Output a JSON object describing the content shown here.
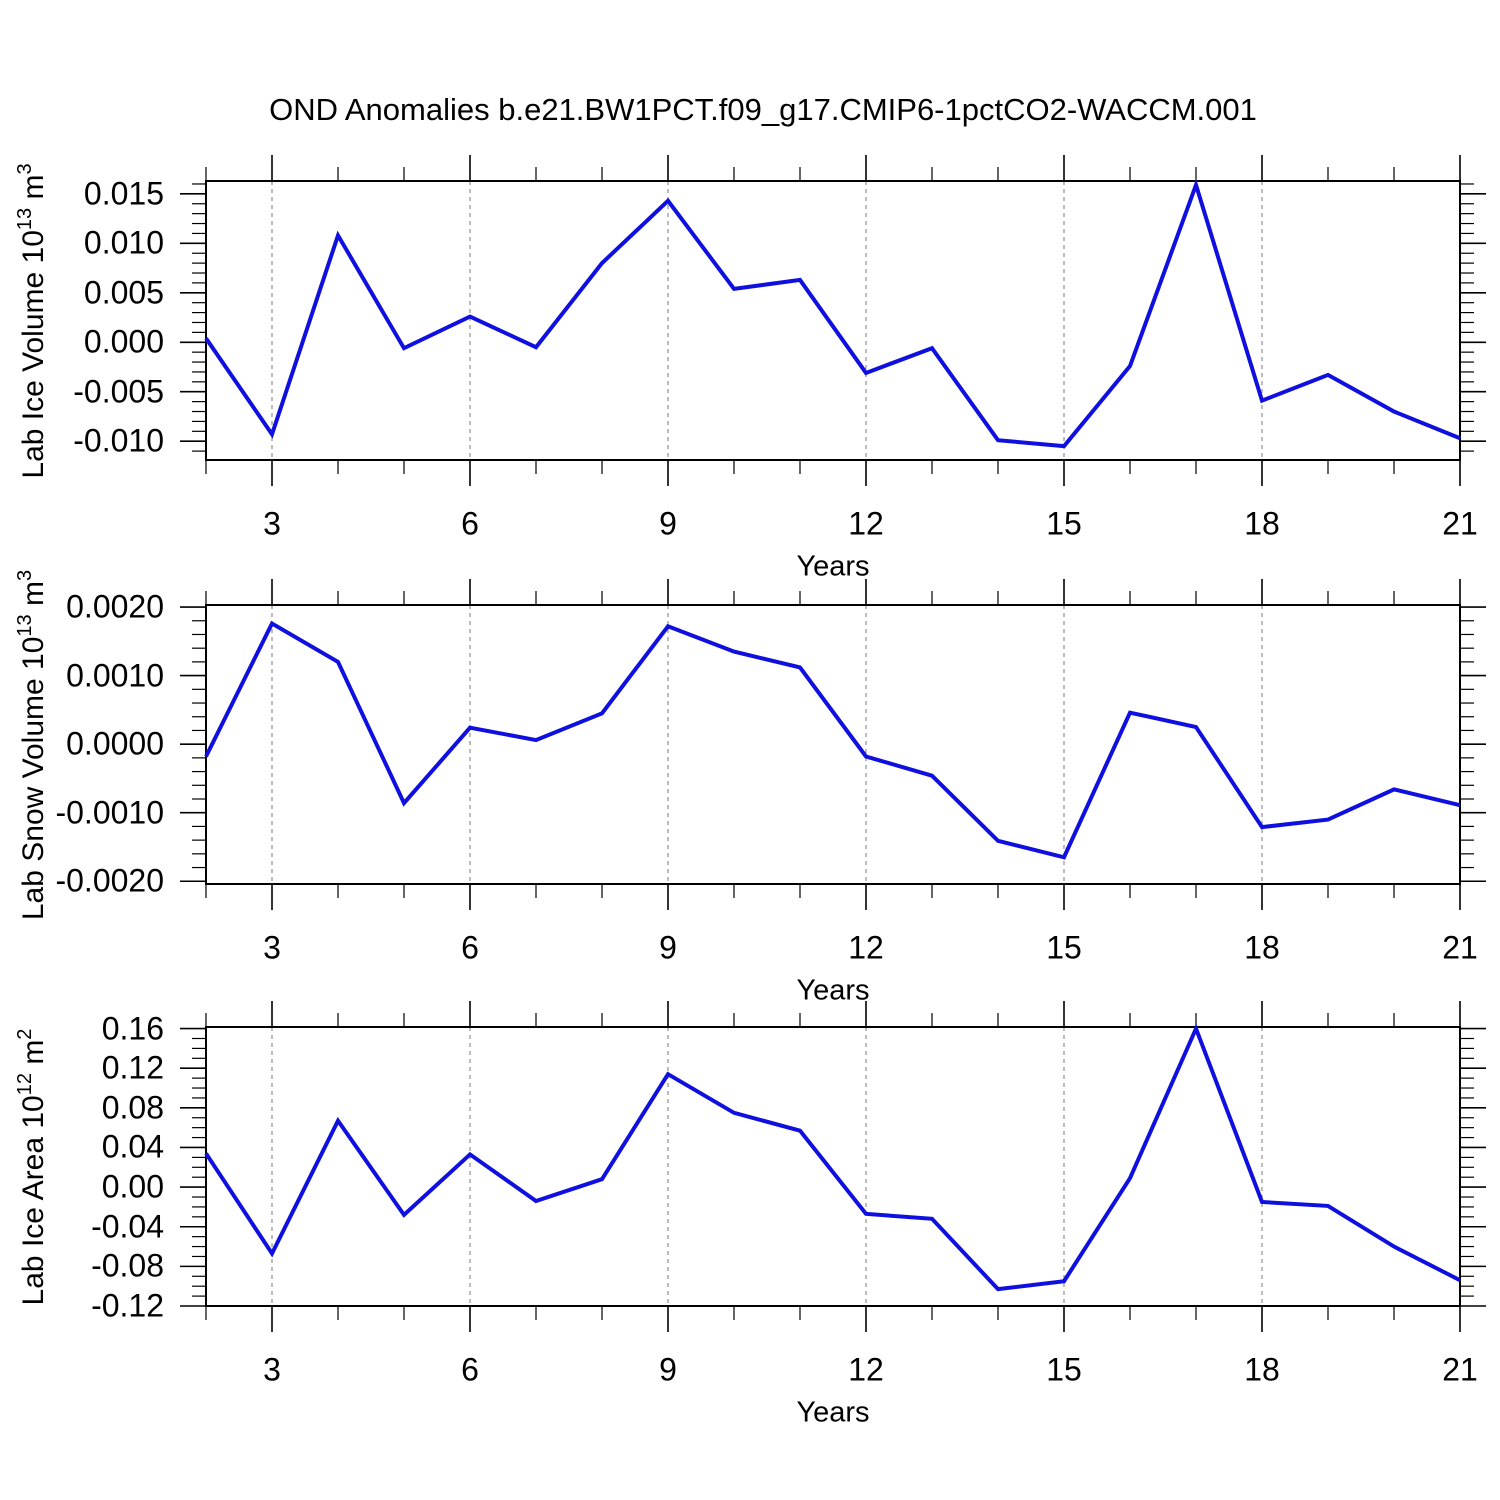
{
  "title": "OND Anomalies b.e21.BW1PCT.f09_g17.CMIP6-1pctCO2-WACCM.001",
  "x_axis": {
    "label": "Years",
    "tick_labels": [
      "3",
      "6",
      "9",
      "12",
      "15",
      "18",
      "21"
    ],
    "tick_values": [
      3,
      6,
      9,
      12,
      15,
      18,
      21
    ],
    "minor_tick_values": [
      2,
      4,
      5,
      7,
      8,
      10,
      11,
      13,
      14,
      16,
      17,
      19,
      20
    ],
    "gridline_values": [
      3,
      6,
      9,
      12,
      15,
      18
    ],
    "range": [
      2,
      21
    ]
  },
  "style": {
    "line_color": "#0f10e0",
    "grid_color": "#999999",
    "axis_color": "#000000",
    "background": "#ffffff"
  },
  "chart_data": [
    {
      "type": "line",
      "id": "lab-ice-volume",
      "ylabel": "Lab Ice Volume 10^13 m^3",
      "ylabel_parts": [
        {
          "t": "Lab Ice Volume 10"
        },
        {
          "t": "13",
          "sup": true
        },
        {
          "t": " m"
        },
        {
          "t": "3",
          "sup": true
        }
      ],
      "xlabel": "Years",
      "x": [
        2,
        3,
        4,
        5,
        6,
        7,
        8,
        9,
        10,
        11,
        12,
        13,
        14,
        15,
        16,
        17,
        18,
        19,
        20,
        21
      ],
      "values": [
        0.0004,
        -0.0093,
        0.0108,
        -0.0006,
        0.0026,
        -0.0005,
        0.008,
        0.0143,
        0.0054,
        0.0063,
        -0.0031,
        -0.0006,
        -0.0099,
        -0.0105,
        -0.0024,
        0.0159,
        -0.0059,
        -0.0033,
        -0.007,
        -0.0097
      ],
      "ytick_labels": [
        "0.015",
        "0.010",
        "0.005",
        "0.000",
        "-0.005",
        "-0.010"
      ],
      "ytick_values": [
        0.015,
        0.01,
        0.005,
        0.0,
        -0.005,
        -0.01
      ],
      "y_minor_step": 0.001,
      "ylim": [
        -0.0119,
        0.0163
      ],
      "xlim": [
        2,
        21
      ],
      "grid": "vertical-dashed"
    },
    {
      "type": "line",
      "id": "lab-snow-volume",
      "ylabel": "Lab Snow Volume 10^13 m^3",
      "ylabel_parts": [
        {
          "t": "Lab Snow Volume 10"
        },
        {
          "t": "13",
          "sup": true
        },
        {
          "t": " m"
        },
        {
          "t": "3",
          "sup": true
        }
      ],
      "xlabel": "Years",
      "x": [
        2,
        3,
        4,
        5,
        6,
        7,
        8,
        9,
        10,
        11,
        12,
        13,
        14,
        15,
        16,
        17,
        18,
        19,
        20,
        21
      ],
      "values": [
        -0.00018,
        0.00176,
        0.0012,
        -0.00086,
        0.00024,
        6e-05,
        0.00045,
        0.00172,
        0.00135,
        0.00112,
        -0.00018,
        -0.00046,
        -0.00141,
        -0.00165,
        0.00046,
        0.00025,
        -0.00121,
        -0.0011,
        -0.00066,
        -0.00089
      ],
      "ytick_labels": [
        "0.0020",
        "0.0010",
        "0.0000",
        "-0.0010",
        "-0.0020"
      ],
      "ytick_values": [
        0.002,
        0.001,
        0.0,
        -0.001,
        -0.002
      ],
      "y_minor_step": 0.0002,
      "ylim": [
        -0.00204,
        0.00203
      ],
      "xlim": [
        2,
        21
      ],
      "grid": "vertical-dashed"
    },
    {
      "type": "line",
      "id": "lab-ice-area",
      "ylabel": "Lab Ice Area 10^12 m^2",
      "ylabel_parts": [
        {
          "t": "Lab Ice Area 10"
        },
        {
          "t": "12",
          "sup": true
        },
        {
          "t": " m"
        },
        {
          "t": "2",
          "sup": true
        }
      ],
      "xlabel": "Years",
      "x": [
        2,
        3,
        4,
        5,
        6,
        7,
        8,
        9,
        10,
        11,
        12,
        13,
        14,
        15,
        16,
        17,
        18,
        19,
        20,
        21
      ],
      "values": [
        0.034,
        -0.067,
        0.067,
        -0.028,
        0.033,
        -0.014,
        0.008,
        0.114,
        0.075,
        0.057,
        -0.027,
        -0.032,
        -0.103,
        -0.095,
        0.009,
        0.16,
        -0.015,
        -0.019,
        -0.06,
        -0.094
      ],
      "ytick_labels": [
        "0.16",
        "0.12",
        "0.08",
        "0.04",
        "0.00",
        "-0.04",
        "-0.08",
        "-0.12"
      ],
      "ytick_values": [
        0.16,
        0.12,
        0.08,
        0.04,
        0.0,
        -0.04,
        -0.08,
        -0.12
      ],
      "y_minor_step": 0.01,
      "ylim": [
        -0.12,
        0.1616
      ],
      "xlim": [
        2,
        21
      ],
      "grid": "vertical-dashed"
    }
  ]
}
